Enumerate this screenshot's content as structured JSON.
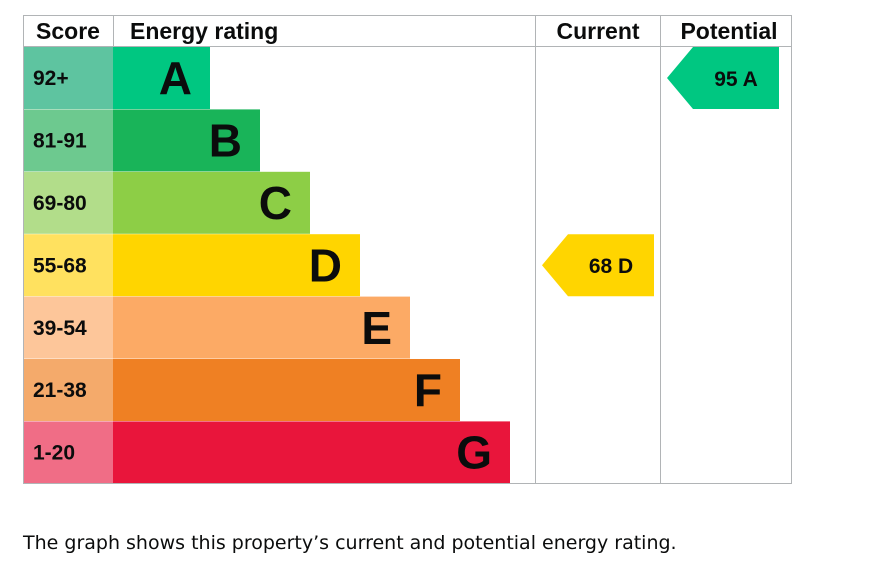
{
  "chart_data": {
    "type": "bar",
    "headers": {
      "score": "Score",
      "rating": "Energy rating",
      "current": "Current",
      "potential": "Potential"
    },
    "bands": [
      {
        "score": "92+",
        "letter": "A",
        "bar_color": "#00c781",
        "score_bg": "#5ec4a0"
      },
      {
        "score": "81-91",
        "letter": "B",
        "bar_color": "#19b459",
        "score_bg": "#6dc98f"
      },
      {
        "score": "69-80",
        "letter": "C",
        "bar_color": "#8dce46",
        "score_bg": "#b2dd8a"
      },
      {
        "score": "55-68",
        "letter": "D",
        "bar_color": "#ffd500",
        "score_bg": "#ffe15f"
      },
      {
        "score": "39-54",
        "letter": "E",
        "bar_color": "#fcaa65",
        "score_bg": "#fdc69a"
      },
      {
        "score": "21-38",
        "letter": "F",
        "bar_color": "#ef8023",
        "score_bg": "#f4aa6b"
      },
      {
        "score": "1-20",
        "letter": "G",
        "bar_color": "#e9153b",
        "score_bg": "#f06d86"
      }
    ],
    "current": {
      "value": 68,
      "letter": "D",
      "label": "68 D",
      "color": "#ffd500"
    },
    "potential": {
      "value": 95,
      "letter": "A",
      "label": "95 A",
      "color": "#00c781"
    }
  },
  "caption": "The graph shows this property’s current and potential energy rating."
}
